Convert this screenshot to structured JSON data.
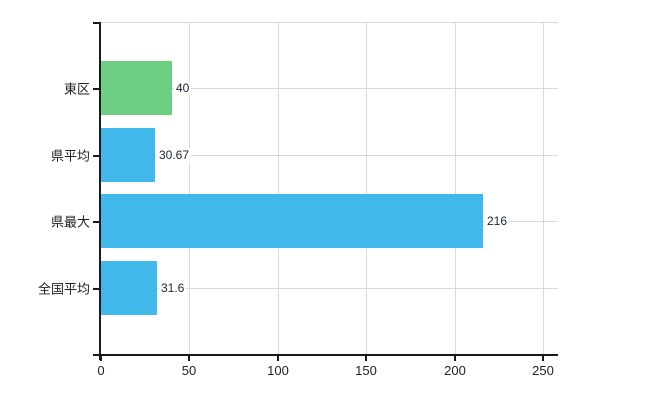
{
  "chart_data": {
    "type": "bar",
    "orientation": "horizontal",
    "title": "",
    "xlabel": "",
    "ylabel": "",
    "categories": [
      "東区",
      "県平均",
      "県最大",
      "全国平均"
    ],
    "values": [
      40,
      30.67,
      216,
      31.6
    ],
    "value_labels": [
      "40",
      "30.67",
      "216",
      "31.6"
    ],
    "bar_colors": [
      "#6dcf81",
      "#41b8ec",
      "#41b8ec",
      "#41b8ec"
    ],
    "xlim": [
      0,
      250
    ],
    "xticks": [
      0,
      50,
      100,
      150,
      200,
      250
    ],
    "xtick_labels": [
      "0",
      "50",
      "100",
      "150",
      "200",
      "250"
    ],
    "grid": true,
    "legend": "none"
  },
  "colors": {
    "background": "#ffffff",
    "axis": "#1a1a1a",
    "grid": "#d9d9d9",
    "text": "#222222",
    "value_text": "#1c2430",
    "bar_green": "#6dcf81",
    "bar_blue": "#41b8ec"
  }
}
